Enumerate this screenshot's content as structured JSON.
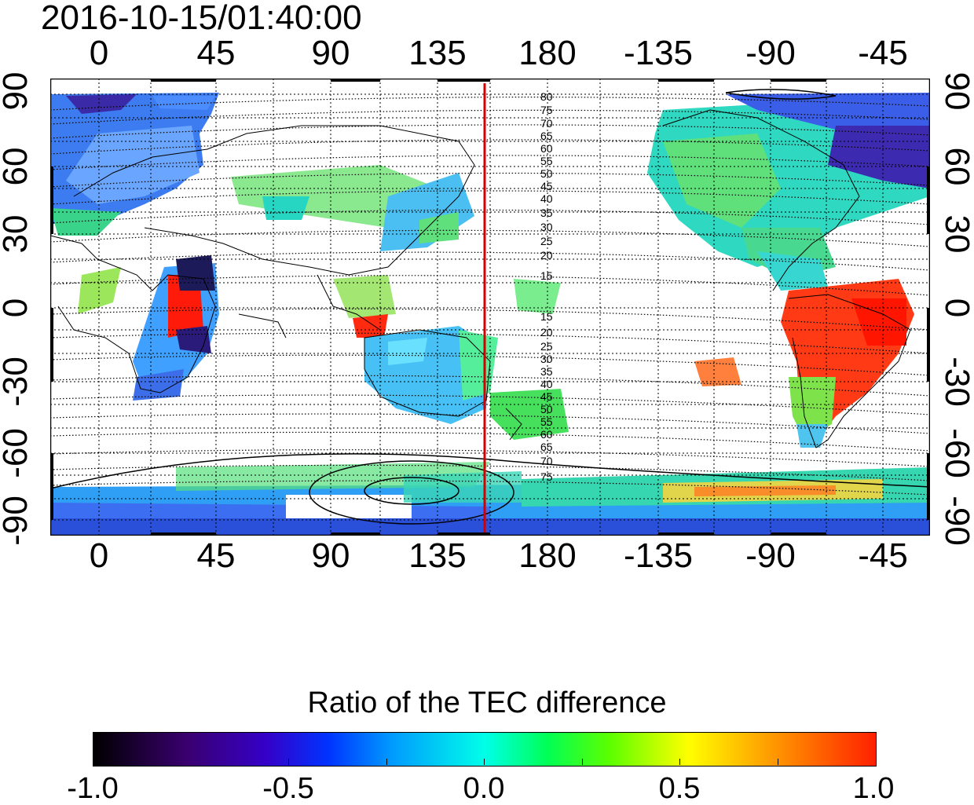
{
  "title": "2016-10-15/01:40:00",
  "map": {
    "lon_labels": [
      "0",
      "45",
      "90",
      "135",
      "180",
      "-135",
      "-90",
      "-45"
    ],
    "lat_labels_left": [
      "90",
      "60",
      "30",
      "0",
      "-30",
      "-60",
      "-90"
    ],
    "lat_labels_right": [
      "90",
      "60",
      "30",
      "0",
      "-30",
      "-60",
      "-90"
    ],
    "contour_labels_north": [
      "80",
      "75",
      "70",
      "65",
      "60",
      "55",
      "50",
      "45",
      "40",
      "35",
      "30",
      "25",
      "20",
      "15"
    ],
    "contour_labels_south": [
      "15",
      "20",
      "25",
      "30",
      "35",
      "40",
      "45",
      "50",
      "55",
      "60",
      "65",
      "70",
      "75"
    ],
    "reference_meridian_color": "#d40000",
    "grid": true
  },
  "colorbar": {
    "title": "Ratio of the TEC difference",
    "tick_labels": [
      "-1.0",
      "-0.5",
      "0.0",
      "0.5",
      "1.0"
    ],
    "range": [
      -1.0,
      1.0
    ]
  }
}
